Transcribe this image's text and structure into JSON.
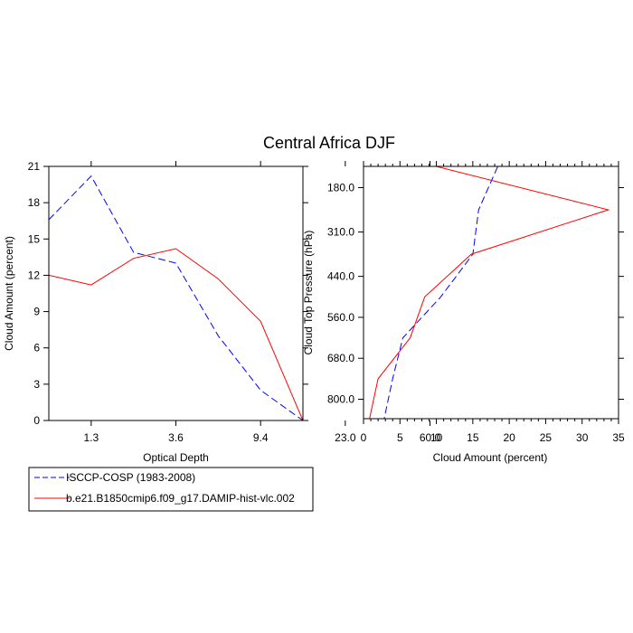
{
  "figure": {
    "title": "Central Africa DJF"
  },
  "colors": {
    "obs": "#0000ff",
    "model": "#ff0000"
  },
  "legend": {
    "placement": "bottom-left",
    "entries": [
      {
        "label": "ISCCP-COSP (1983-2008)",
        "style": "dashed",
        "color": "#0000ff"
      },
      {
        "label": "b.e21.B1850cmip6.f09_g17.DAMIP-hist-vlc.002",
        "style": "solid",
        "color": "#ff0000"
      }
    ]
  },
  "chart_data": [
    {
      "type": "line",
      "title": "",
      "xlabel": "Optical Depth",
      "ylabel": "Cloud Amount (percent)",
      "categories": [
        "1.3",
        "3.6",
        "9.4",
        "23.0",
        "60.0"
      ],
      "x_ticks": [
        "1.3",
        "3.6",
        "9.4",
        "23.0",
        "60.0"
      ],
      "y_ticks": [
        "0",
        "3",
        "6",
        "9",
        "12",
        "15",
        "18",
        "21"
      ],
      "xlim": [
        0,
        6
      ],
      "ylim": [
        0,
        21
      ],
      "grid": false,
      "series": [
        {
          "name": "ISCCP-COSP (1983-2008)",
          "color": "#0000ff",
          "dash": true,
          "x": [
            0,
            1,
            2,
            3,
            4,
            5,
            6
          ],
          "values": [
            16.6,
            20.2,
            13.9,
            13.0,
            7.0,
            2.5,
            0.0
          ]
        },
        {
          "name": "b.e21.B1850cmip6.f09_g17.DAMIP-hist-vlc.002",
          "color": "#ff0000",
          "dash": false,
          "x": [
            0,
            1,
            2,
            3,
            4,
            5,
            6
          ],
          "values": [
            12.0,
            11.2,
            13.4,
            14.2,
            11.7,
            8.2,
            0.0
          ]
        }
      ]
    },
    {
      "type": "line",
      "title": "",
      "xlabel": "Cloud Amount (percent)",
      "ylabel": "Cloud Top Pressure (hPa)",
      "x_ticks": [
        "0",
        "5",
        "10",
        "15",
        "20",
        "25",
        "30",
        "35"
      ],
      "y_ticks": [
        "180.0",
        "310.0",
        "440.0",
        "560.0",
        "680.0",
        "800.0"
      ],
      "xlim": [
        0,
        35
      ],
      "grid": false,
      "series": [
        {
          "name": "ISCCP-COSP (1983-2008)",
          "color": "#0000ff",
          "dash": true,
          "x": [
            19.0,
            15.8,
            15.0,
            10.6,
            5.4,
            4.0,
            2.8
          ],
          "pressure": [
            "90.0",
            "245.0",
            "375.0",
            "500.0",
            "620.0",
            "740.0",
            "860.0"
          ]
        },
        {
          "name": "b.e21.B1850cmip6.f09_g17.DAMIP-hist-vlc.002",
          "color": "#ff0000",
          "dash": false,
          "x": [
            4.8,
            33.6,
            14.8,
            8.4,
            6.4,
            2.0,
            0.8
          ],
          "pressure": [
            "90.0",
            "245.0",
            "375.0",
            "500.0",
            "620.0",
            "740.0",
            "860.0"
          ]
        }
      ]
    }
  ]
}
